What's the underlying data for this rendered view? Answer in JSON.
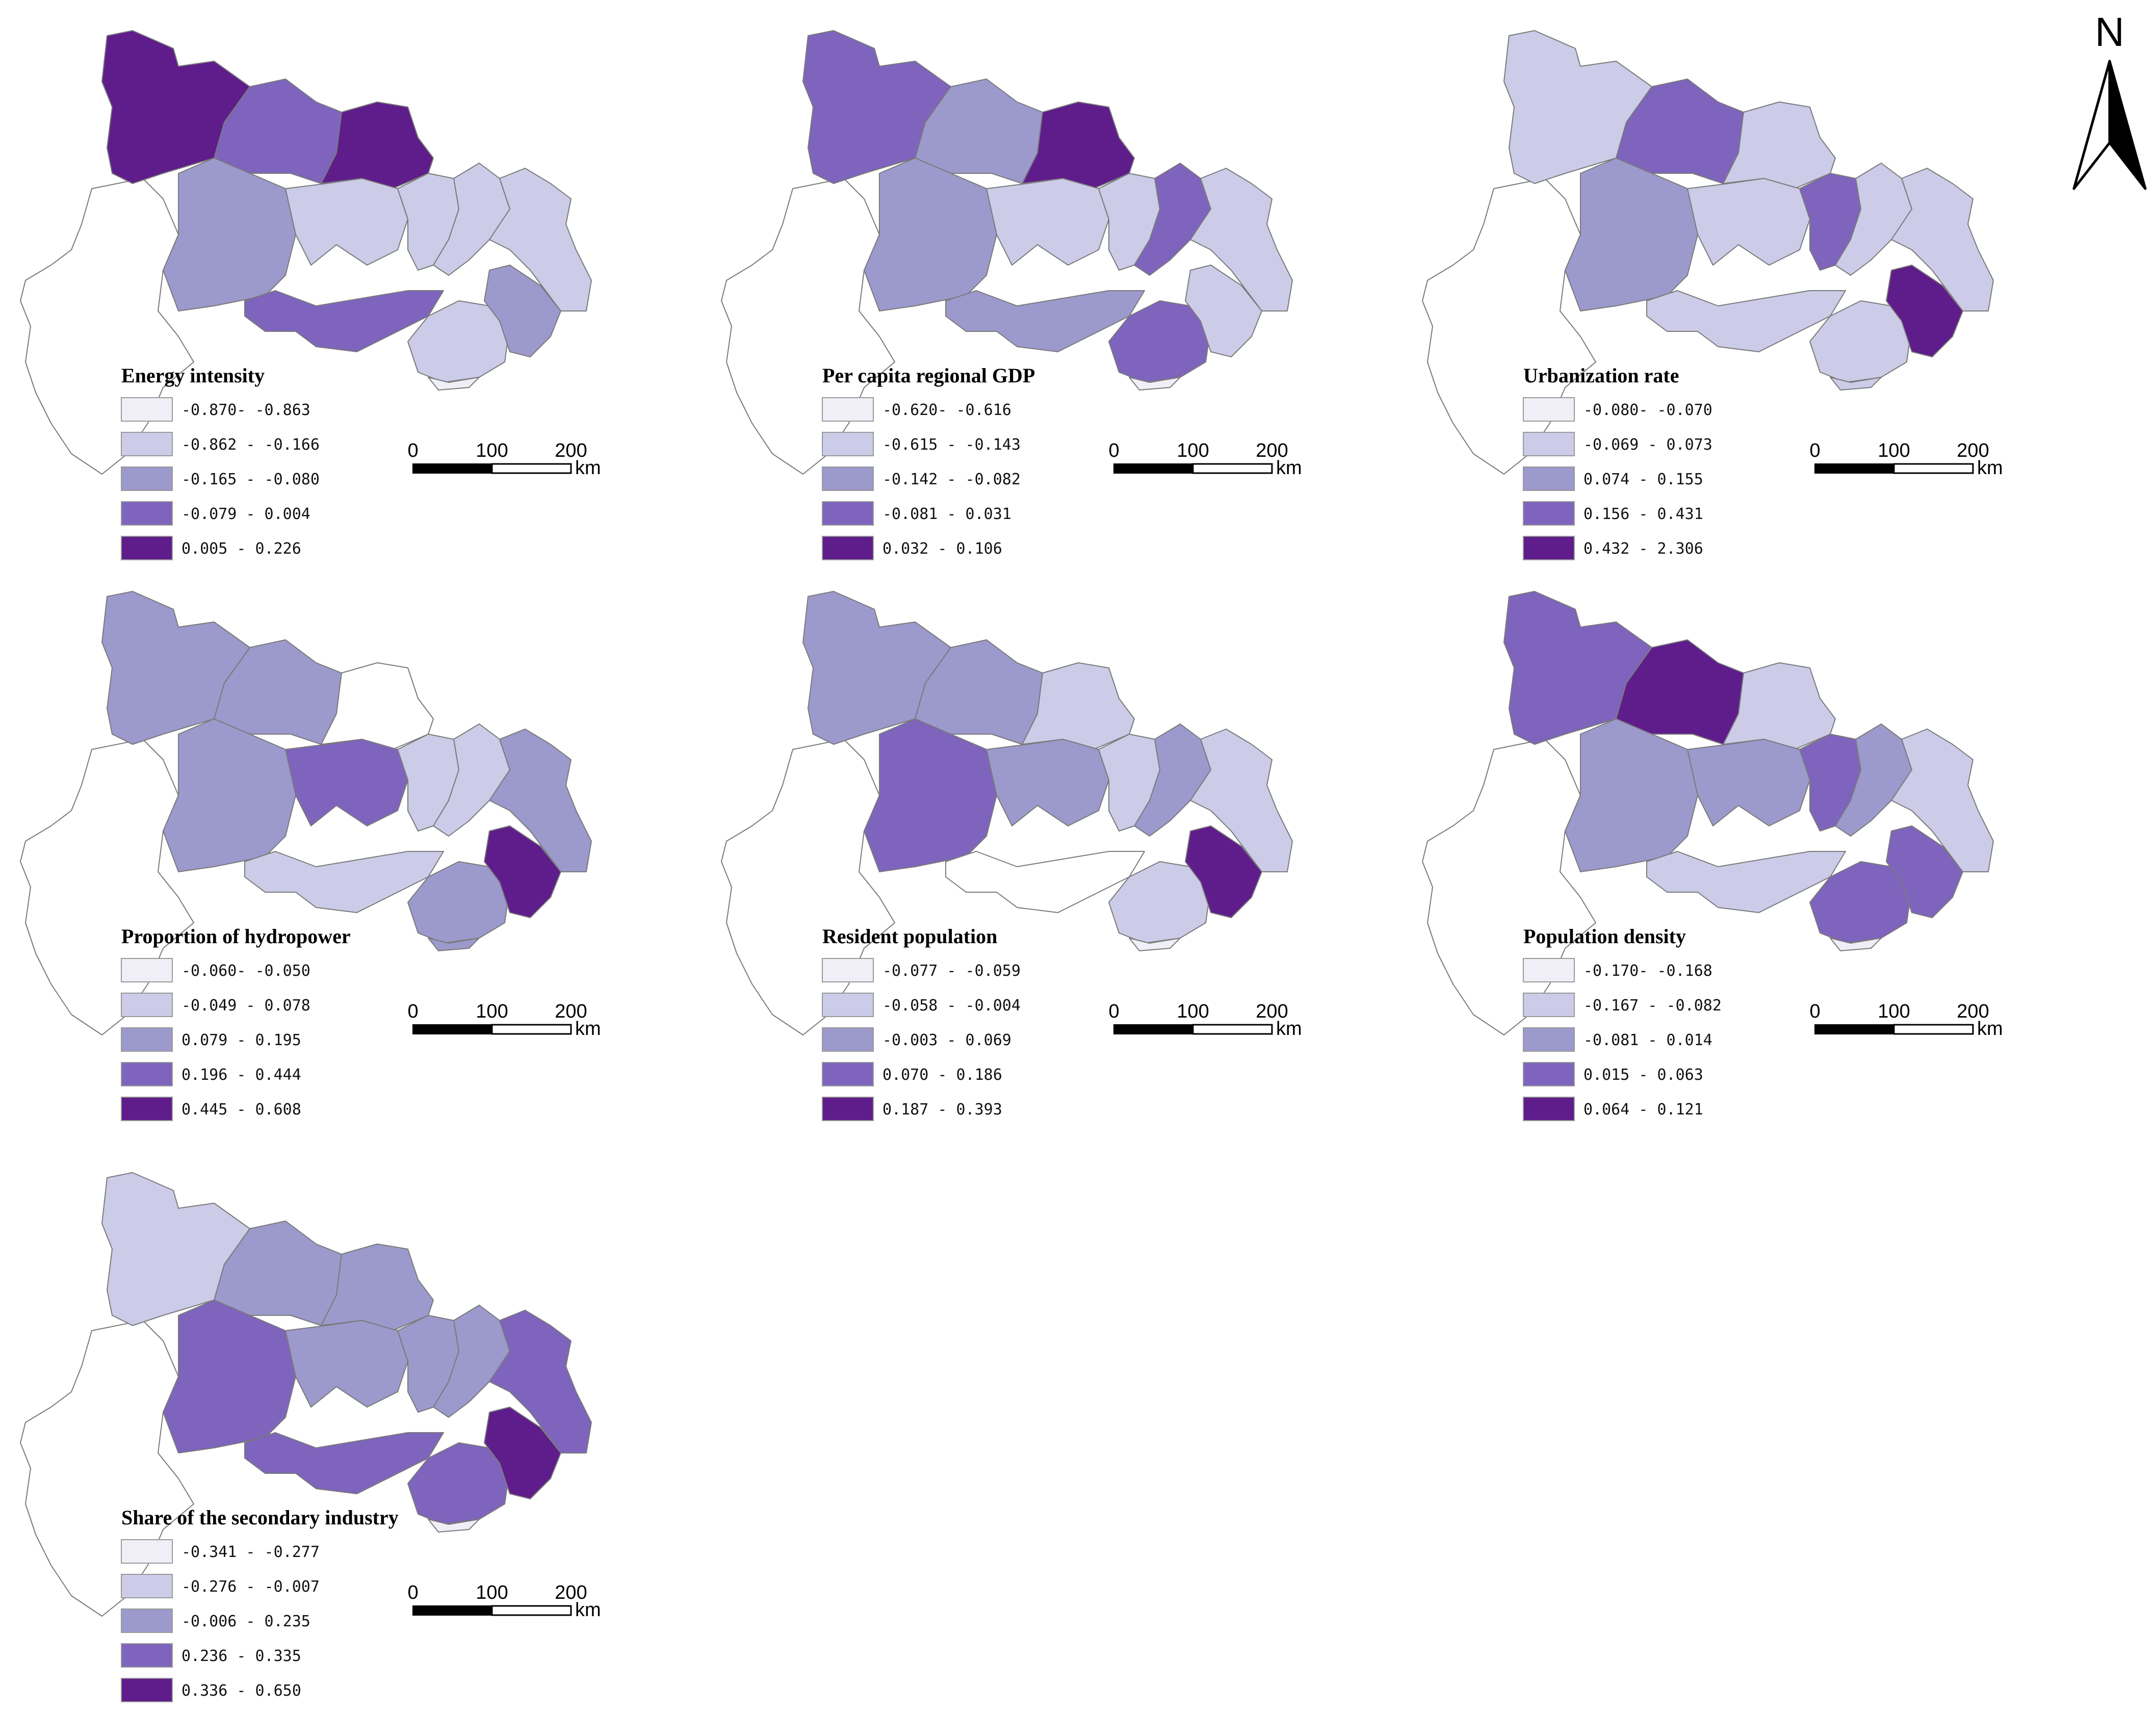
{
  "palette": {
    "class1": "#f0eef6",
    "class2": "#cccbe8",
    "class3": "#9c99cc",
    "class4": "#7e64bd",
    "class5": "#5f1d8b",
    "outline": "#7a7a7a"
  },
  "north_arrow": {
    "label": "N",
    "icon": "north-arrow-icon"
  },
  "scale_bar": {
    "ticks": [
      "0",
      "100",
      "200"
    ],
    "unit": "km"
  },
  "maps": [
    {
      "id": "energy-intensity",
      "title": "Energy intensity",
      "legend": [
        "-0.870- -0.863",
        "-0.862 - -0.166",
        "-0.165 - -0.080",
        "-0.079 - 0.004",
        "0.005 - 0.226"
      ],
      "classes": {
        "R1": 5,
        "R2": 4,
        "R3": 5,
        "R4": 3,
        "R5": 2,
        "R6": 2,
        "R7": 2,
        "R8": 2,
        "R9": 4,
        "R10": 2,
        "R11": 3,
        "R12": 1,
        "W": 0
      }
    },
    {
      "id": "per-capita-gdp",
      "title": "Per capita regional GDP",
      "legend": [
        "-0.620- -0.616",
        "-0.615 - -0.143",
        "-0.142 - -0.082",
        "-0.081 - 0.031",
        "0.032 - 0.106"
      ],
      "classes": {
        "R1": 4,
        "R2": 3,
        "R3": 5,
        "R4": 3,
        "R5": 2,
        "R6": 2,
        "R7": 4,
        "R8": 2,
        "R9": 3,
        "R10": 4,
        "R11": 2,
        "R12": 1,
        "W": 0
      }
    },
    {
      "id": "urbanization-rate",
      "title": "Urbanization rate",
      "legend": [
        "-0.080- -0.070",
        "-0.069 - 0.073",
        "0.074 - 0.155",
        "0.156 - 0.431",
        "0.432 - 2.306"
      ],
      "classes": {
        "R1": 2,
        "R2": 4,
        "R3": 2,
        "R4": 3,
        "R5": 2,
        "R6": 4,
        "R7": 2,
        "R8": 2,
        "R9": 2,
        "R10": 2,
        "R11": 5,
        "R12": 2,
        "W": 0
      }
    },
    {
      "id": "hydropower",
      "title": "Proportion of hydropower",
      "legend": [
        "-0.060- -0.050",
        "-0.049 - 0.078",
        "0.079 - 0.195",
        "0.196 - 0.444",
        "0.445 - 0.608"
      ],
      "classes": {
        "R1": 3,
        "R2": 3,
        "R3": 0,
        "R4": 3,
        "R5": 4,
        "R6": 2,
        "R7": 2,
        "R8": 3,
        "R9": 2,
        "R10": 3,
        "R11": 5,
        "R12": 3,
        "W": 0
      }
    },
    {
      "id": "resident-population",
      "title": "Resident population",
      "legend": [
        "-0.077 - -0.059",
        "-0.058 - -0.004",
        "-0.003 - 0.069",
        "0.070 - 0.186",
        "0.187 - 0.393"
      ],
      "classes": {
        "R1": 3,
        "R2": 3,
        "R3": 2,
        "R4": 4,
        "R5": 3,
        "R6": 2,
        "R7": 3,
        "R8": 2,
        "R9": 0,
        "R10": 2,
        "R11": 5,
        "R12": 1,
        "W": 0
      }
    },
    {
      "id": "population-density",
      "title": "Population density",
      "legend": [
        "-0.170- -0.168",
        "-0.167 - -0.082",
        "-0.081 - 0.014",
        "0.015 - 0.063",
        "0.064 - 0.121"
      ],
      "classes": {
        "R1": 4,
        "R2": 5,
        "R3": 2,
        "R4": 3,
        "R5": 3,
        "R6": 4,
        "R7": 3,
        "R8": 2,
        "R9": 2,
        "R10": 4,
        "R11": 4,
        "R12": 1,
        "W": 0
      }
    },
    {
      "id": "secondary-industry",
      "title": "Share of the secondary industry",
      "legend": [
        "-0.341 - -0.277",
        "-0.276 - -0.007",
        "-0.006 - 0.235",
        "0.236 - 0.335",
        "0.336 - 0.650"
      ],
      "classes": {
        "R1": 2,
        "R2": 3,
        "R3": 3,
        "R4": 4,
        "R5": 3,
        "R6": 3,
        "R7": 3,
        "R8": 4,
        "R9": 4,
        "R10": 4,
        "R11": 5,
        "R12": 1,
        "W": 0
      }
    }
  ]
}
